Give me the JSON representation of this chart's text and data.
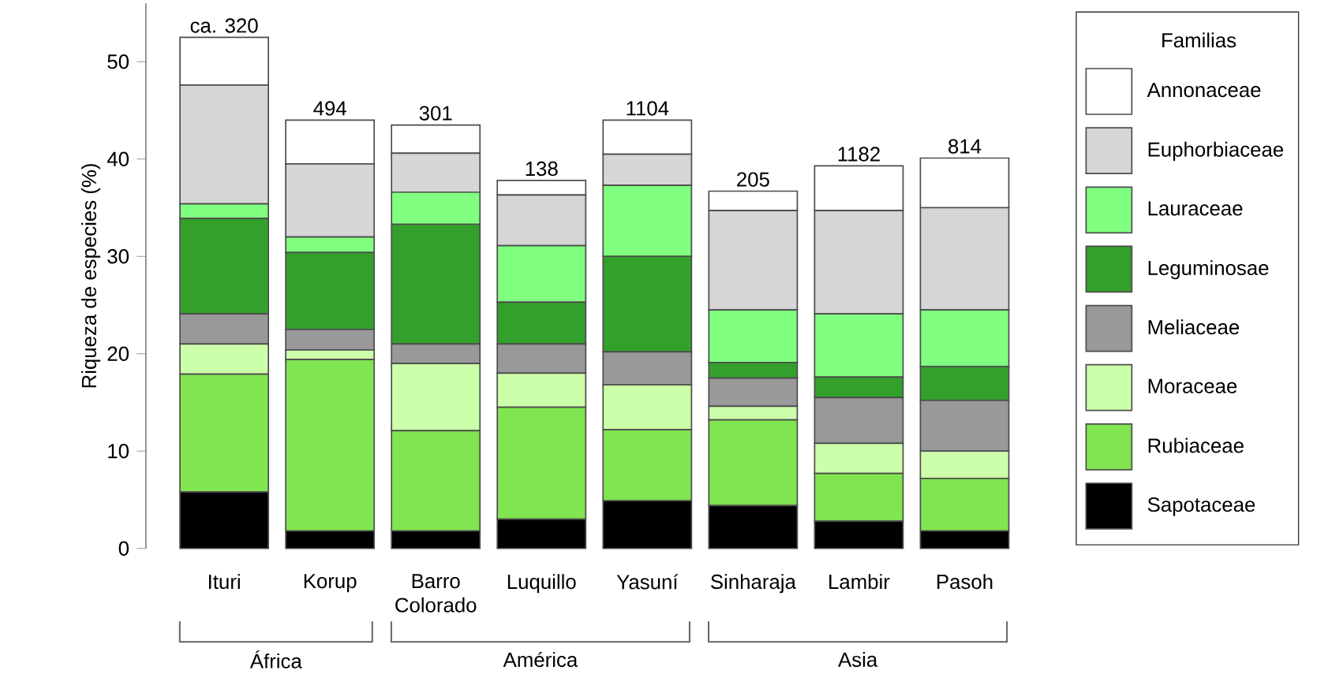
{
  "chart_data": {
    "type": "bar",
    "stacked": true,
    "categories": [
      "Ituri",
      "Korup",
      "Barro Colorado",
      "Luquillo",
      "Yasuní",
      "Sinharaja",
      "Lambir",
      "Pasoh"
    ],
    "series": [
      {
        "name": "Sapotaceae",
        "color": "#000000",
        "values": [
          5.8,
          1.8,
          1.8,
          3.0,
          4.9,
          4.4,
          2.8,
          1.8
        ]
      },
      {
        "name": "Rubiaceae",
        "color": "#80e550",
        "values": [
          12.1,
          17.6,
          10.3,
          11.5,
          7.3,
          8.8,
          4.9,
          5.4
        ]
      },
      {
        "name": "Moraceae",
        "color": "#ccffaa",
        "values": [
          3.1,
          1.0,
          6.9,
          3.5,
          4.6,
          1.4,
          3.1,
          2.8
        ]
      },
      {
        "name": "Meliaceae",
        "color": "#999999",
        "values": [
          3.1,
          2.1,
          2.0,
          3.0,
          3.4,
          2.9,
          4.7,
          5.2
        ]
      },
      {
        "name": "Leguminosae",
        "color": "#33a02c",
        "values": [
          9.8,
          7.9,
          12.3,
          4.3,
          9.8,
          1.6,
          2.1,
          3.5
        ]
      },
      {
        "name": "Lauraceae",
        "color": "#80ff80",
        "values": [
          1.5,
          1.6,
          3.3,
          5.8,
          7.3,
          5.4,
          6.5,
          5.8
        ]
      },
      {
        "name": "Euphorbiaceae",
        "color": "#d6d6d6",
        "values": [
          12.2,
          7.5,
          4.0,
          5.2,
          3.2,
          10.2,
          10.6,
          10.5
        ]
      },
      {
        "name": "Annonaceae",
        "color": "#ffffff",
        "values": [
          4.9,
          4.5,
          2.9,
          1.5,
          3.5,
          2.0,
          4.6,
          5.1
        ]
      }
    ],
    "ylabel": "Riqueza de especies (%)",
    "legend_title": "Familias",
    "legend": "right",
    "ylim": [
      0,
      56
    ],
    "yticks": [
      0,
      10,
      20,
      30,
      40,
      50
    ],
    "annotations": [
      {
        "text": "ca. 320",
        "x": "Ituri",
        "y": 52.5
      },
      {
        "text": "494",
        "x": "Korup",
        "y": 44.0
      },
      {
        "text": "301",
        "x": "Barro Colorado",
        "y": 43.5
      },
      {
        "text": "138",
        "x": "Luquillo",
        "y": 37.8
      },
      {
        "text": "1104",
        "x": "Yasuní",
        "y": 44.0
      },
      {
        "text": "205",
        "x": "Sinharaja",
        "y": 36.7
      },
      {
        "text": "1182",
        "x": "Lambir",
        "y": 39.3
      },
      {
        "text": "814",
        "x": "Pasoh",
        "y": 40.1
      },
      "África",
      "América",
      "Asia"
    ]
  }
}
